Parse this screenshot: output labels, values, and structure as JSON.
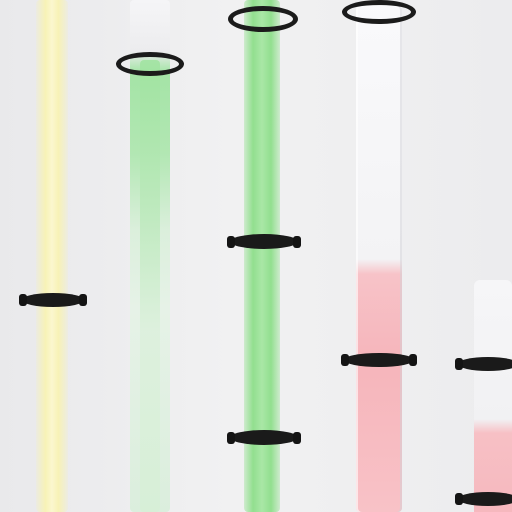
{
  "scene": {
    "description_colors": {
      "background": "#ebebed",
      "yellow_light": "#f6f0a8",
      "green_light": "#9fe4a0",
      "green_light_bright": "#8ee08a",
      "pink_light": "#f7b8be",
      "clear_tube": "#f4f4f6",
      "clamp": "#1a1a1a"
    },
    "tube_count": 5,
    "tube_colors": [
      "yellow",
      "green",
      "green",
      "pink",
      "pink"
    ]
  }
}
